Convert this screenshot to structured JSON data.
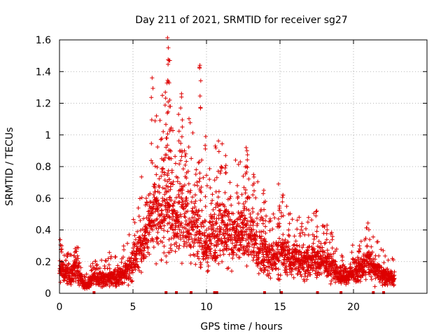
{
  "chart_data": {
    "type": "scatter",
    "title": "Day 211 of 2021, SRMTID for receiver sg27",
    "xlabel": "GPS time / hours",
    "ylabel": "SRMTID / TECUs",
    "xlim": [
      0,
      25
    ],
    "ylim": [
      0,
      1.6
    ],
    "x_ticks": [
      0,
      5,
      10,
      15,
      20
    ],
    "x_tick_labels": [
      "0",
      "5",
      "10",
      "15",
      "20"
    ],
    "y_ticks": [
      0,
      0.2,
      0.4,
      0.6,
      0.8,
      1.0,
      1.2,
      1.4,
      1.6
    ],
    "y_tick_labels": [
      "0",
      "0.2",
      "0.4",
      "0.6",
      "0.8",
      "1",
      "1.2",
      "1.4",
      "1.6"
    ],
    "grid": true,
    "marker": "+",
    "color": "#dd0000",
    "profile": [
      [
        0.0,
        0.16
      ],
      [
        0.3,
        0.13
      ],
      [
        0.7,
        0.11
      ],
      [
        1.0,
        0.15
      ],
      [
        1.3,
        0.13
      ],
      [
        1.6,
        0.06
      ],
      [
        1.9,
        0.05
      ],
      [
        2.3,
        0.1
      ],
      [
        2.7,
        0.09
      ],
      [
        3.0,
        0.09
      ],
      [
        3.4,
        0.11
      ],
      [
        3.8,
        0.1
      ],
      [
        4.2,
        0.11
      ],
      [
        4.6,
        0.15
      ],
      [
        5.0,
        0.2
      ],
      [
        5.4,
        0.28
      ],
      [
        5.8,
        0.35
      ],
      [
        6.2,
        0.45
      ],
      [
        6.6,
        0.5
      ],
      [
        7.0,
        0.48
      ],
      [
        7.4,
        0.52
      ],
      [
        7.8,
        0.45
      ],
      [
        8.2,
        0.48
      ],
      [
        8.6,
        0.47
      ],
      [
        9.0,
        0.45
      ],
      [
        9.4,
        0.4
      ],
      [
        9.7,
        0.35
      ],
      [
        10.0,
        0.28
      ],
      [
        10.3,
        0.36
      ],
      [
        10.7,
        0.4
      ],
      [
        11.0,
        0.43
      ],
      [
        11.4,
        0.38
      ],
      [
        11.8,
        0.36
      ],
      [
        12.2,
        0.35
      ],
      [
        12.6,
        0.4
      ],
      [
        13.0,
        0.36
      ],
      [
        13.4,
        0.3
      ],
      [
        13.8,
        0.28
      ],
      [
        14.2,
        0.22
      ],
      [
        14.6,
        0.22
      ],
      [
        15.0,
        0.25
      ],
      [
        15.4,
        0.24
      ],
      [
        15.8,
        0.22
      ],
      [
        16.2,
        0.22
      ],
      [
        16.6,
        0.2
      ],
      [
        17.0,
        0.2
      ],
      [
        17.4,
        0.22
      ],
      [
        17.8,
        0.21
      ],
      [
        18.2,
        0.18
      ],
      [
        18.6,
        0.16
      ],
      [
        19.0,
        0.12
      ],
      [
        19.4,
        0.1
      ],
      [
        19.8,
        0.12
      ],
      [
        20.2,
        0.14
      ],
      [
        20.6,
        0.16
      ],
      [
        21.0,
        0.19
      ],
      [
        21.4,
        0.15
      ],
      [
        21.8,
        0.13
      ],
      [
        22.2,
        0.11
      ],
      [
        22.6,
        0.1
      ],
      [
        22.8,
        0.09
      ]
    ],
    "peaks": [
      [
        6.3,
        1.36
      ],
      [
        6.6,
        1.12
      ],
      [
        7.0,
        1.25
      ],
      [
        7.2,
        1.27
      ],
      [
        7.35,
        1.62
      ],
      [
        7.4,
        1.55
      ],
      [
        7.45,
        1.47
      ],
      [
        7.5,
        1.22
      ],
      [
        7.55,
        1.18
      ],
      [
        7.3,
        0.98
      ],
      [
        8.1,
        1.13
      ],
      [
        8.3,
        1.26
      ],
      [
        8.35,
        1.05
      ],
      [
        8.6,
        0.88
      ],
      [
        9.55,
        1.44
      ],
      [
        9.95,
        0.99
      ],
      [
        10.6,
        0.93
      ],
      [
        11.0,
        0.8
      ],
      [
        11.3,
        0.87
      ],
      [
        12.7,
        0.92
      ],
      [
        12.75,
        0.9
      ],
      [
        13.2,
        0.75
      ],
      [
        13.9,
        0.65
      ],
      [
        14.9,
        0.69
      ],
      [
        15.2,
        0.62
      ],
      [
        17.5,
        0.52
      ],
      [
        18.2,
        0.43
      ],
      [
        21.1,
        0.34
      ],
      [
        20.4,
        0.3
      ],
      [
        1.05,
        0.26
      ],
      [
        0.15,
        0.3
      ],
      [
        5.9,
        0.6
      ],
      [
        6.1,
        0.5
      ]
    ],
    "outliers_high_band": [
      [
        6.9,
        0.97
      ],
      [
        7.1,
        0.84
      ],
      [
        7.6,
        0.85
      ],
      [
        7.9,
        0.82
      ],
      [
        8.5,
        0.9
      ],
      [
        8.75,
        0.77
      ],
      [
        9.3,
        0.78
      ],
      [
        9.5,
        0.83
      ],
      [
        10.2,
        0.72
      ],
      [
        10.8,
        0.77
      ],
      [
        11.6,
        0.7
      ],
      [
        12.1,
        0.68
      ],
      [
        12.5,
        0.74
      ],
      [
        14.0,
        0.58
      ],
      [
        15.6,
        0.5
      ],
      [
        16.3,
        0.48
      ],
      [
        16.9,
        0.45
      ]
    ],
    "baseline_markers_x": [
      2.35,
      7.25,
      7.95,
      8.95,
      10.55,
      10.7,
      13.95,
      15.1,
      17.55,
      19.15,
      21.35,
      22.05
    ]
  }
}
